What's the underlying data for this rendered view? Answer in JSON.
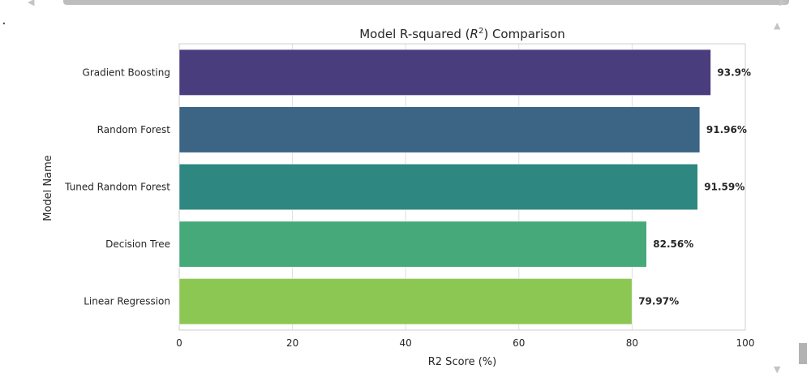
{
  "chart_data": {
    "type": "bar",
    "orientation": "horizontal",
    "title": "Model R-squared ($R^2$) Comparison",
    "xlabel": "R2 Score (%)",
    "ylabel": "Model Name",
    "xlim": [
      0,
      100
    ],
    "xticks": [
      0,
      20,
      40,
      60,
      80,
      100
    ],
    "grid": true,
    "categories": [
      "Gradient Boosting",
      "Random Forest",
      "Tuned Random Forest",
      "Decision Tree",
      "Linear Regression"
    ],
    "values": [
      93.9,
      91.96,
      91.59,
      82.56,
      79.97
    ],
    "value_labels": [
      "93.9%",
      "91.96%",
      "91.59%",
      "82.56%",
      "79.97%"
    ],
    "colors": [
      "#4a3d7d",
      "#3b6485",
      "#2e8781",
      "#46a97a",
      "#8cc653"
    ]
  }
}
